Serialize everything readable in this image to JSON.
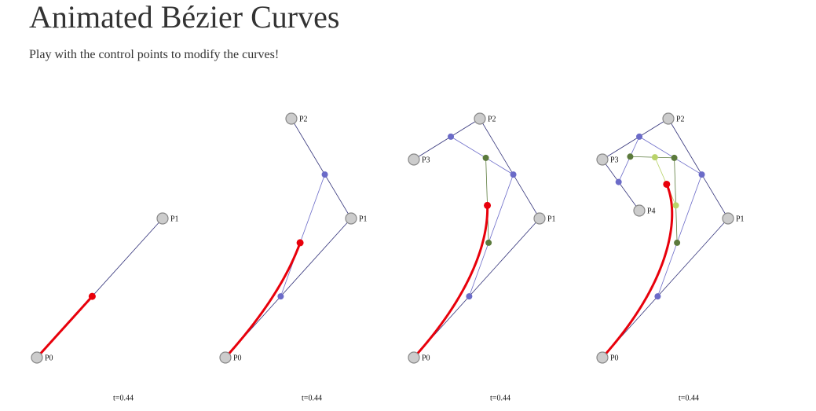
{
  "header": {
    "title": "Animated Bézier Curves",
    "subtitle": "Play with the control points to modify the curves!"
  },
  "panels": [
    {
      "points": [
        "P0",
        "P1"
      ],
      "t_label": "t=0.44"
    },
    {
      "points": [
        "P0",
        "P1",
        "P2"
      ],
      "t_label": "t=0.44"
    },
    {
      "points": [
        "P0",
        "P1",
        "P2",
        "P3"
      ],
      "t_label": "t=0.44"
    },
    {
      "points": [
        "P0",
        "P1",
        "P2",
        "P3",
        "P4"
      ],
      "t_label": "t=0.44"
    }
  ]
}
